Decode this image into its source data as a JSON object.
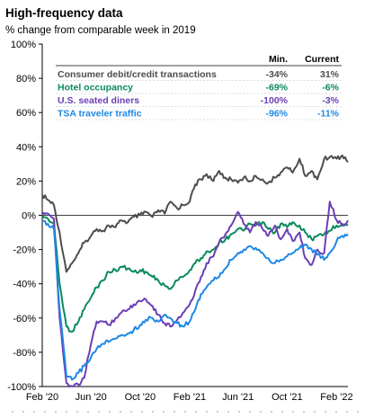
{
  "chart_data": {
    "type": "line",
    "title": "High-frequency data",
    "subtitle": "% change from comparable week in 2019",
    "xlabel": "",
    "ylabel": "",
    "ylim": [
      -100,
      100
    ],
    "yticks": [
      100,
      80,
      60,
      40,
      20,
      0,
      -20,
      -40,
      -60,
      -80,
      -100
    ],
    "ytick_labels": [
      "100%",
      "80%",
      "60%",
      "40%",
      "20%",
      "0%",
      "-20%",
      "-40%",
      "-60%",
      "-80%",
      "-100%"
    ],
    "x_range": [
      "2020-02-01",
      "2022-03-01"
    ],
    "xtick_labels": [
      "Feb '20",
      "Jun '20",
      "Oct '20",
      "Feb '21",
      "Jun '21",
      "Oct '21",
      "Feb '22"
    ],
    "xtick_dates": [
      "2020-02-01",
      "2020-06-01",
      "2020-10-01",
      "2021-02-01",
      "2021-06-01",
      "2021-10-01",
      "2022-02-01"
    ],
    "legend": {
      "placement": "top-right",
      "headers": [
        "Min.",
        "Current"
      ]
    },
    "series": [
      {
        "name": "Consumer debit/credit transactions",
        "color": "#4d4d4d",
        "min": "-34%",
        "current": "31%",
        "points": [
          [
            "2020-02-01",
            12
          ],
          [
            "2020-02-15",
            9
          ],
          [
            "2020-03-01",
            6
          ],
          [
            "2020-03-15",
            -10
          ],
          [
            "2020-04-01",
            -33
          ],
          [
            "2020-04-15",
            -28
          ],
          [
            "2020-05-01",
            -22
          ],
          [
            "2020-05-15",
            -16
          ],
          [
            "2020-06-01",
            -12
          ],
          [
            "2020-06-15",
            -8
          ],
          [
            "2020-07-01",
            -9
          ],
          [
            "2020-07-15",
            -6
          ],
          [
            "2020-08-01",
            -7
          ],
          [
            "2020-08-15",
            -3
          ],
          [
            "2020-09-01",
            -4
          ],
          [
            "2020-09-15",
            -1
          ],
          [
            "2020-10-01",
            0
          ],
          [
            "2020-10-15",
            2
          ],
          [
            "2020-11-01",
            -1
          ],
          [
            "2020-11-15",
            3
          ],
          [
            "2020-12-01",
            1
          ],
          [
            "2020-12-15",
            8
          ],
          [
            "2021-01-01",
            4
          ],
          [
            "2021-01-15",
            6
          ],
          [
            "2021-02-01",
            8
          ],
          [
            "2021-02-15",
            18
          ],
          [
            "2021-03-01",
            21
          ],
          [
            "2021-03-15",
            24
          ],
          [
            "2021-04-01",
            20
          ],
          [
            "2021-04-15",
            26
          ],
          [
            "2021-05-01",
            22
          ],
          [
            "2021-05-15",
            21
          ],
          [
            "2021-06-01",
            19
          ],
          [
            "2021-06-15",
            22
          ],
          [
            "2021-07-01",
            20
          ],
          [
            "2021-07-15",
            23
          ],
          [
            "2021-08-01",
            21
          ],
          [
            "2021-08-15",
            19
          ],
          [
            "2021-09-01",
            22
          ],
          [
            "2021-09-15",
            25
          ],
          [
            "2021-10-01",
            28
          ],
          [
            "2021-10-15",
            25
          ],
          [
            "2021-11-01",
            33
          ],
          [
            "2021-11-15",
            23
          ],
          [
            "2021-12-01",
            26
          ],
          [
            "2021-12-15",
            21
          ],
          [
            "2022-01-01",
            33
          ],
          [
            "2022-01-15",
            34
          ],
          [
            "2022-02-01",
            33
          ],
          [
            "2022-02-15",
            35
          ],
          [
            "2022-03-01",
            31
          ]
        ]
      },
      {
        "name": "Hotel occupancy",
        "color": "#0a8a5a",
        "min": "-69%",
        "current": "-6%",
        "points": [
          [
            "2020-02-01",
            0
          ],
          [
            "2020-02-15",
            -2
          ],
          [
            "2020-03-01",
            -5
          ],
          [
            "2020-03-15",
            -40
          ],
          [
            "2020-04-01",
            -65
          ],
          [
            "2020-04-15",
            -68
          ],
          [
            "2020-05-01",
            -62
          ],
          [
            "2020-05-15",
            -55
          ],
          [
            "2020-06-01",
            -48
          ],
          [
            "2020-06-15",
            -42
          ],
          [
            "2020-07-01",
            -38
          ],
          [
            "2020-07-15",
            -33
          ],
          [
            "2020-08-01",
            -32
          ],
          [
            "2020-08-15",
            -30
          ],
          [
            "2020-09-01",
            -31
          ],
          [
            "2020-09-15",
            -33
          ],
          [
            "2020-10-01",
            -32
          ],
          [
            "2020-10-15",
            -33
          ],
          [
            "2020-11-01",
            -36
          ],
          [
            "2020-11-15",
            -38
          ],
          [
            "2020-12-01",
            -41
          ],
          [
            "2020-12-15",
            -43
          ],
          [
            "2021-01-01",
            -38
          ],
          [
            "2021-01-15",
            -36
          ],
          [
            "2021-02-01",
            -32
          ],
          [
            "2021-02-15",
            -28
          ],
          [
            "2021-03-01",
            -25
          ],
          [
            "2021-03-15",
            -21
          ],
          [
            "2021-04-01",
            -20
          ],
          [
            "2021-04-15",
            -16
          ],
          [
            "2021-05-01",
            -14
          ],
          [
            "2021-05-15",
            -11
          ],
          [
            "2021-06-01",
            -8
          ],
          [
            "2021-06-15",
            -9
          ],
          [
            "2021-07-01",
            -5
          ],
          [
            "2021-07-15",
            -6
          ],
          [
            "2021-08-01",
            -4
          ],
          [
            "2021-08-15",
            -8
          ],
          [
            "2021-09-01",
            -10
          ],
          [
            "2021-09-15",
            -5
          ],
          [
            "2021-10-01",
            -7
          ],
          [
            "2021-10-15",
            -4
          ],
          [
            "2021-11-01",
            -6
          ],
          [
            "2021-11-15",
            -10
          ],
          [
            "2021-12-01",
            -14
          ],
          [
            "2021-12-15",
            -12
          ],
          [
            "2022-01-01",
            -11
          ],
          [
            "2022-01-15",
            -9
          ],
          [
            "2022-02-01",
            -6
          ],
          [
            "2022-02-15",
            -5
          ],
          [
            "2022-03-01",
            -6
          ]
        ]
      },
      {
        "name": "U.S. seated diners",
        "color": "#6b3fb5",
        "min": "-100%",
        "current": "-3%",
        "points": [
          [
            "2020-02-01",
            0
          ],
          [
            "2020-02-15",
            1
          ],
          [
            "2020-03-01",
            -2
          ],
          [
            "2020-03-15",
            -60
          ],
          [
            "2020-04-01",
            -98
          ],
          [
            "2020-04-15",
            -100
          ],
          [
            "2020-05-01",
            -99
          ],
          [
            "2020-05-15",
            -95
          ],
          [
            "2020-06-01",
            -75
          ],
          [
            "2020-06-15",
            -62
          ],
          [
            "2020-07-01",
            -62
          ],
          [
            "2020-07-15",
            -64
          ],
          [
            "2020-08-01",
            -60
          ],
          [
            "2020-08-15",
            -57
          ],
          [
            "2020-09-01",
            -55
          ],
          [
            "2020-09-15",
            -52
          ],
          [
            "2020-10-01",
            -50
          ],
          [
            "2020-10-15",
            -49
          ],
          [
            "2020-11-01",
            -53
          ],
          [
            "2020-11-15",
            -58
          ],
          [
            "2020-12-01",
            -63
          ],
          [
            "2020-12-15",
            -65
          ],
          [
            "2021-01-01",
            -61
          ],
          [
            "2021-01-15",
            -57
          ],
          [
            "2021-02-01",
            -52
          ],
          [
            "2021-02-15",
            -44
          ],
          [
            "2021-03-01",
            -36
          ],
          [
            "2021-03-15",
            -28
          ],
          [
            "2021-04-01",
            -24
          ],
          [
            "2021-04-15",
            -16
          ],
          [
            "2021-05-01",
            -11
          ],
          [
            "2021-05-15",
            -6
          ],
          [
            "2021-06-01",
            2
          ],
          [
            "2021-06-15",
            -5
          ],
          [
            "2021-07-01",
            -10
          ],
          [
            "2021-07-15",
            -4
          ],
          [
            "2021-08-01",
            -8
          ],
          [
            "2021-08-15",
            -12
          ],
          [
            "2021-09-01",
            -6
          ],
          [
            "2021-09-15",
            -14
          ],
          [
            "2021-10-01",
            -8
          ],
          [
            "2021-10-15",
            -15
          ],
          [
            "2021-11-01",
            -10
          ],
          [
            "2021-11-15",
            -25
          ],
          [
            "2021-12-01",
            -29
          ],
          [
            "2021-12-15",
            -20
          ],
          [
            "2022-01-01",
            -22
          ],
          [
            "2022-01-15",
            8
          ],
          [
            "2022-02-01",
            -3
          ],
          [
            "2022-02-15",
            -6
          ],
          [
            "2022-03-01",
            -3
          ]
        ]
      },
      {
        "name": "TSA traveler traffic",
        "color": "#1e88e5",
        "min": "-96%",
        "current": "-11%",
        "points": [
          [
            "2020-02-01",
            -3
          ],
          [
            "2020-02-15",
            -5
          ],
          [
            "2020-03-01",
            -8
          ],
          [
            "2020-03-15",
            -55
          ],
          [
            "2020-04-01",
            -94
          ],
          [
            "2020-04-15",
            -96
          ],
          [
            "2020-05-01",
            -92
          ],
          [
            "2020-05-15",
            -88
          ],
          [
            "2020-06-01",
            -83
          ],
          [
            "2020-06-15",
            -78
          ],
          [
            "2020-07-01",
            -75
          ],
          [
            "2020-07-15",
            -74
          ],
          [
            "2020-08-01",
            -72
          ],
          [
            "2020-08-15",
            -70
          ],
          [
            "2020-09-01",
            -69
          ],
          [
            "2020-09-15",
            -67
          ],
          [
            "2020-10-01",
            -64
          ],
          [
            "2020-10-15",
            -61
          ],
          [
            "2020-11-01",
            -60
          ],
          [
            "2020-11-15",
            -62
          ],
          [
            "2020-12-01",
            -58
          ],
          [
            "2020-12-15",
            -60
          ],
          [
            "2021-01-01",
            -63
          ],
          [
            "2021-01-15",
            -65
          ],
          [
            "2021-02-01",
            -62
          ],
          [
            "2021-02-15",
            -55
          ],
          [
            "2021-03-01",
            -46
          ],
          [
            "2021-03-15",
            -42
          ],
          [
            "2021-04-01",
            -38
          ],
          [
            "2021-04-15",
            -36
          ],
          [
            "2021-05-01",
            -31
          ],
          [
            "2021-05-15",
            -26
          ],
          [
            "2021-06-01",
            -22
          ],
          [
            "2021-06-15",
            -20
          ],
          [
            "2021-07-01",
            -18
          ],
          [
            "2021-07-15",
            -19
          ],
          [
            "2021-08-01",
            -22
          ],
          [
            "2021-08-15",
            -25
          ],
          [
            "2021-09-01",
            -28
          ],
          [
            "2021-09-15",
            -26
          ],
          [
            "2021-10-01",
            -24
          ],
          [
            "2021-10-15",
            -22
          ],
          [
            "2021-11-01",
            -19
          ],
          [
            "2021-11-15",
            -17
          ],
          [
            "2021-12-01",
            -20
          ],
          [
            "2021-12-15",
            -23
          ],
          [
            "2022-01-01",
            -26
          ],
          [
            "2022-01-15",
            -22
          ],
          [
            "2022-02-01",
            -15
          ],
          [
            "2022-02-15",
            -12
          ],
          [
            "2022-03-01",
            -11
          ]
        ]
      }
    ]
  }
}
